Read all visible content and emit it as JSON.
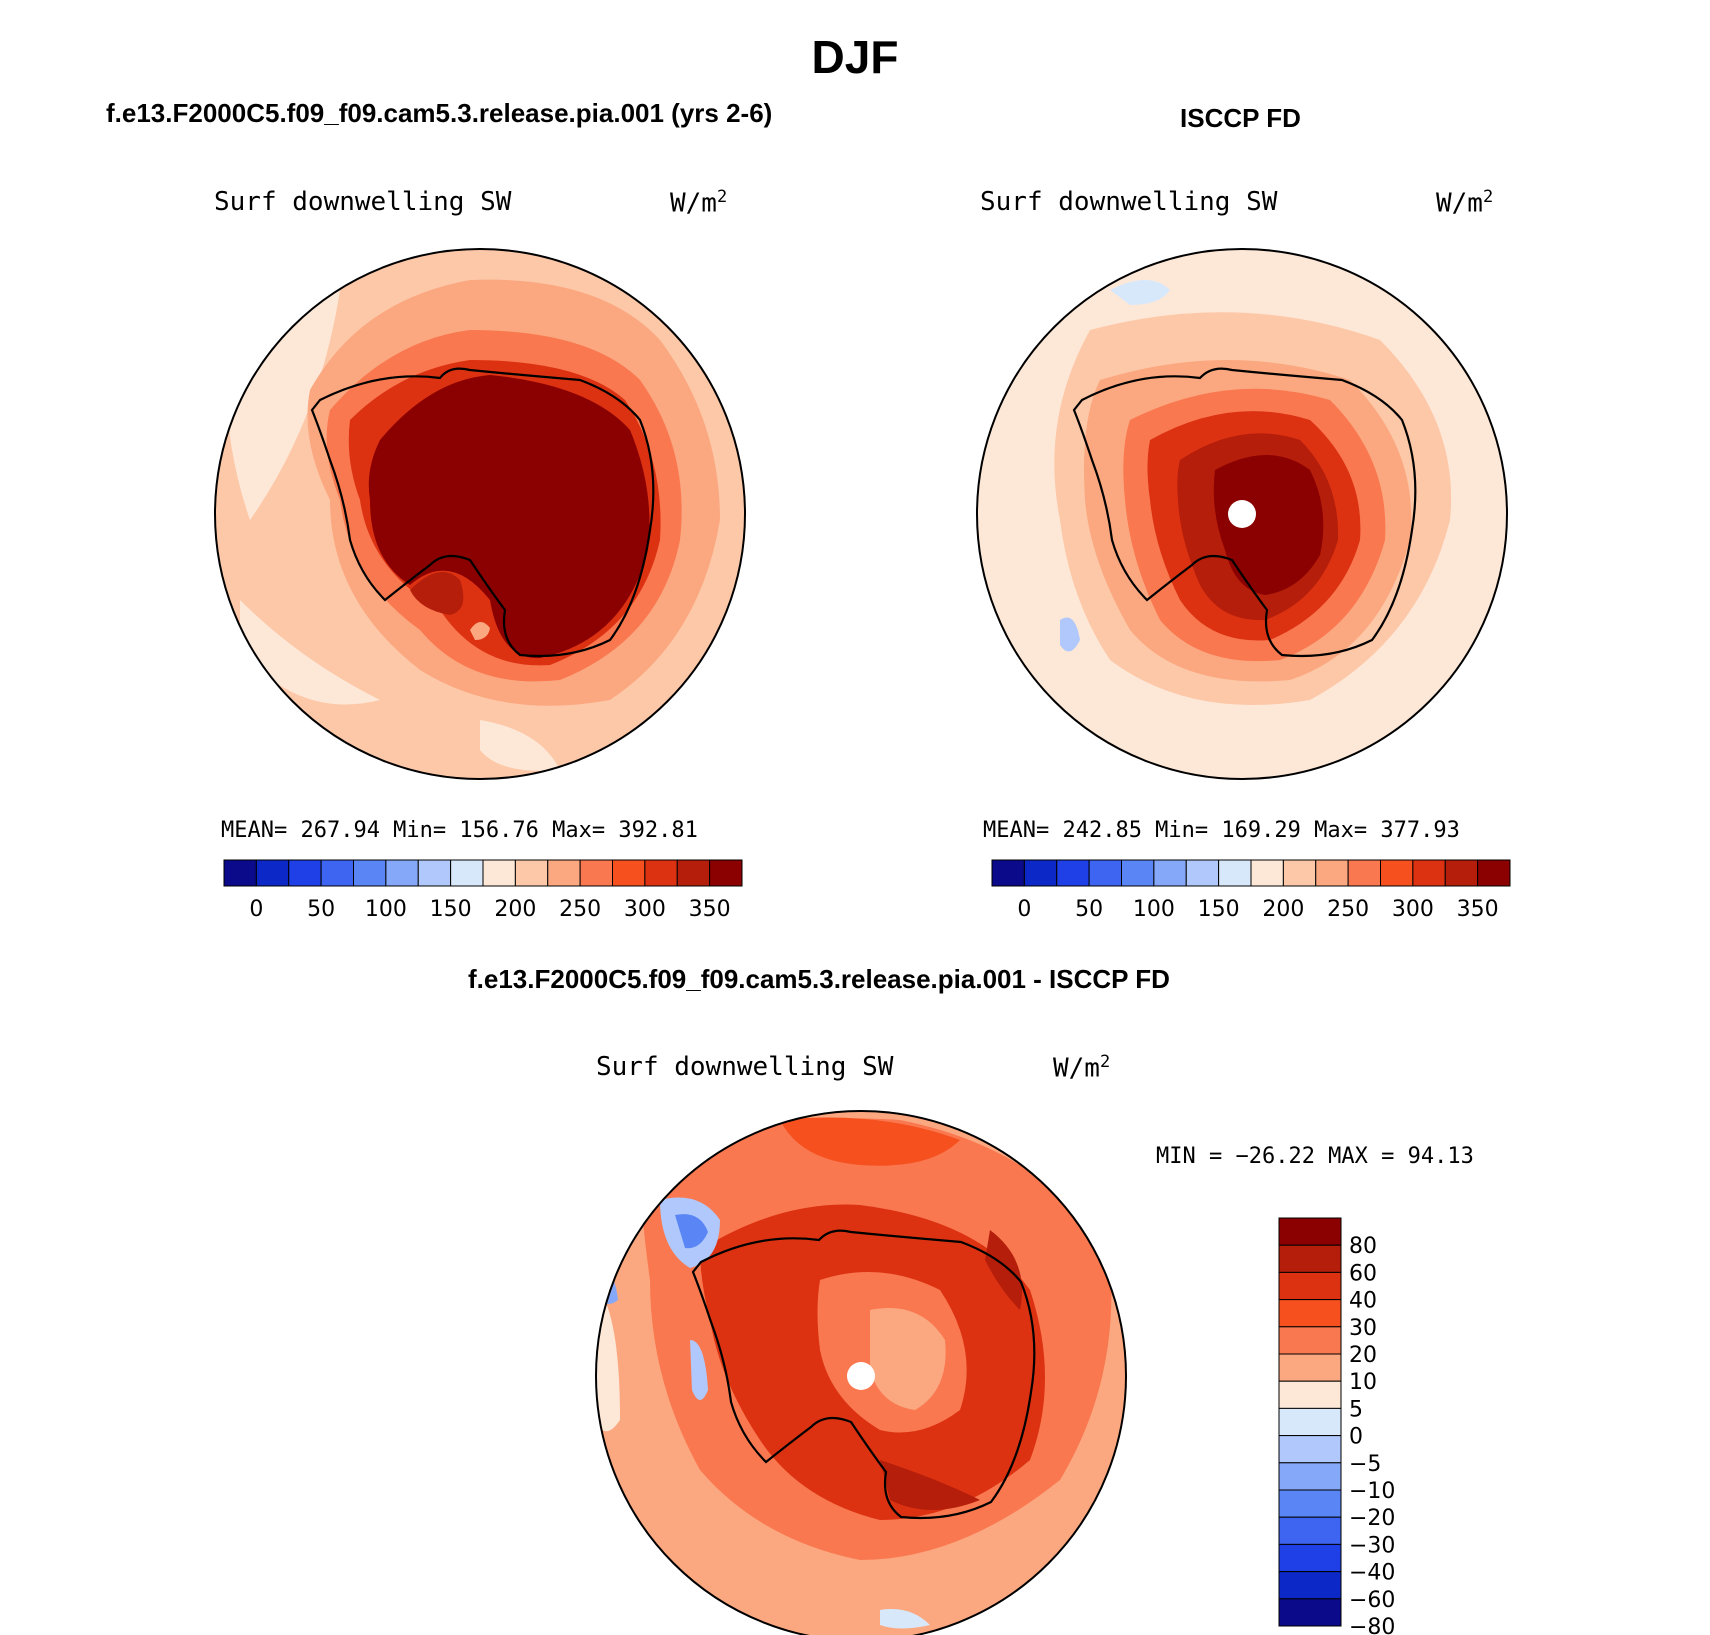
{
  "figure": {
    "title": "DJF",
    "colors": {
      "abs_scale": [
        "#0a0a8a",
        "#0c28c6",
        "#1e40e6",
        "#3e64f2",
        "#5a86f5",
        "#86a8f8",
        "#b0c8fb",
        "#d8e8fb",
        "#fde8d8",
        "#fdc8a8",
        "#fba880",
        "#f97850",
        "#f5501e",
        "#dc3212",
        "#b41e0a",
        "#8b0000"
      ],
      "diff_scale": [
        "#8b0000",
        "#b41e0a",
        "#dc3212",
        "#f5501e",
        "#f97850",
        "#fba880",
        "#fde8d8",
        "#d8e8fb",
        "#b0c8fb",
        "#86a8f8",
        "#5a86f5",
        "#3e64f2",
        "#1e40e6",
        "#0c28c6",
        "#0a0a8a"
      ]
    }
  },
  "panels": {
    "model": {
      "case_title": "f.e13.F2000C5.f09_f09.cam5.3.release.pia.001 (yrs 2-6)",
      "variable": "Surf downwelling SW",
      "units_base": "W/m",
      "units_exp": "2",
      "stats": "MEAN= 267.94   Min= 156.76   Max= 392.81",
      "colorbar_labels": [
        "0",
        "50",
        "100",
        "150",
        "200",
        "250",
        "300",
        "350"
      ]
    },
    "obs": {
      "case_title": "ISCCP FD",
      "variable": "Surf downwelling SW",
      "units_base": "W/m",
      "units_exp": "2",
      "stats": "MEAN= 242.85   Min= 169.29   Max= 377.93",
      "colorbar_labels": [
        "0",
        "50",
        "100",
        "150",
        "200",
        "250",
        "300",
        "350"
      ]
    },
    "diff": {
      "case_title": "f.e13.F2000C5.f09_f09.cam5.3.release.pia.001 - ISCCP FD",
      "variable": "Surf downwelling SW",
      "units_base": "W/m",
      "units_exp": "2",
      "stats": "MIN = −26.22 MAX =  94.13",
      "colorbar_labels": [
        "80",
        "60",
        "40",
        "30",
        "20",
        "10",
        "5",
        "0",
        "−5",
        "−10",
        "−20",
        "−30",
        "−40",
        "−60",
        "−80"
      ]
    }
  }
}
